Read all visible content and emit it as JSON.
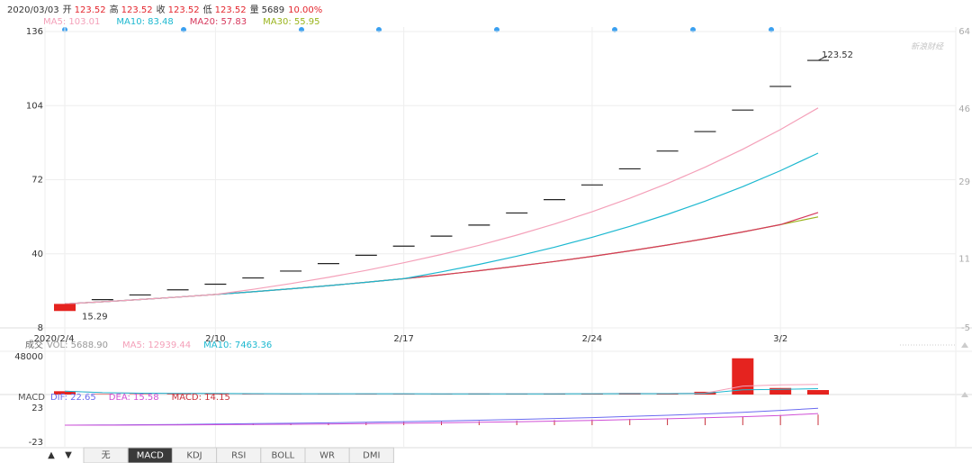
{
  "header": {
    "date": "2020/03/03",
    "items": [
      {
        "label": "开",
        "value": "123.52",
        "color": "#e4262e"
      },
      {
        "label": "高",
        "value": "123.52",
        "color": "#e4262e"
      },
      {
        "label": "收",
        "value": "123.52",
        "color": "#e4262e"
      },
      {
        "label": "低",
        "value": "123.52",
        "color": "#e4262e"
      },
      {
        "label": "量",
        "value": "5689",
        "color": "#333333"
      },
      {
        "value": "10.00%",
        "color": "#e4262e"
      }
    ]
  },
  "watermark": "新浪财经",
  "arrows": [
    "▲",
    "▼"
  ],
  "tabs": [
    "无",
    "MACD",
    "KDJ",
    "RSI",
    "BOLL",
    "WR",
    "DMI"
  ],
  "selected_tab": "MACD",
  "chart_data": [
    {
      "type": "candlestick",
      "categories": [
        "2020/2/4",
        null,
        null,
        null,
        "2/10",
        null,
        null,
        null,
        null,
        "2/17",
        null,
        null,
        null,
        null,
        "2/24",
        null,
        null,
        null,
        null,
        "3/2",
        null
      ],
      "open": [
        15.29,
        20.2,
        22.22,
        24.44,
        26.88,
        29.57,
        32.53,
        35.78,
        39.36,
        43.3,
        47.63,
        52.39,
        57.63,
        63.39,
        69.73,
        76.7,
        84.37,
        92.8,
        102.08,
        112.29,
        123.52
      ],
      "close": [
        18.36,
        20.2,
        22.22,
        24.44,
        26.88,
        29.57,
        32.53,
        35.78,
        39.36,
        43.3,
        47.63,
        52.39,
        57.63,
        63.39,
        69.73,
        76.7,
        84.37,
        92.8,
        102.08,
        112.29,
        123.52
      ],
      "up_color": "#e5231f",
      "flat_color": "#222222",
      "max_label": "123.52",
      "min_label": "15.29",
      "series": [
        {
          "name": "MA30: 55.95",
          "color": "#9ab41c",
          "values": [
            18.36,
            19.28,
            20.26,
            21.31,
            22.42,
            23.61,
            24.89,
            26.25,
            27.7,
            29.26,
            30.93,
            32.72,
            34.64,
            36.69,
            38.89,
            41.26,
            43.79,
            46.52,
            49.44,
            52.58,
            55.95
          ]
        },
        {
          "name": "MA20: 57.83",
          "color": "#d6385c",
          "values": [
            18.36,
            19.28,
            20.26,
            21.31,
            22.42,
            23.61,
            24.89,
            26.25,
            27.7,
            29.26,
            30.93,
            32.72,
            34.64,
            36.69,
            38.89,
            41.26,
            43.79,
            46.52,
            49.44,
            52.58,
            57.83
          ]
        },
        {
          "name": "MA10: 83.48",
          "color": "#1cb8d0",
          "values": [
            18.36,
            19.28,
            20.26,
            21.31,
            22.42,
            23.61,
            24.89,
            26.25,
            27.7,
            29.26,
            32.19,
            35.41,
            38.95,
            42.85,
            47.13,
            51.84,
            57.03,
            62.73,
            69.0,
            75.9,
            83.48
          ]
        },
        {
          "name": "MA5: 103.01",
          "color": "#f4a0b9",
          "values": [
            18.36,
            19.28,
            20.26,
            21.31,
            22.42,
            24.66,
            27.13,
            29.84,
            32.82,
            36.11,
            39.72,
            43.69,
            48.06,
            52.87,
            58.15,
            63.97,
            70.36,
            77.4,
            85.14,
            93.65,
            103.01
          ]
        }
      ],
      "legend_order": [
        3,
        2,
        1,
        0
      ],
      "ylim": [
        8,
        136
      ],
      "yticks": [
        8,
        40,
        72,
        104,
        136
      ],
      "y2lim": [
        -5,
        64
      ],
      "y2ticks": [
        -5,
        11,
        29,
        46,
        64
      ],
      "grid": true
    },
    {
      "type": "volume",
      "title": "成交",
      "bars": {
        "name": "VOL: 5688.90",
        "color": "#e5231f",
        "values": [
          4200,
          600,
          500,
          700,
          600,
          800,
          700,
          900,
          800,
          1000,
          900,
          1500,
          1000,
          1200,
          1100,
          2000,
          1200,
          3500,
          46000,
          8300,
          5688.9
        ]
      },
      "series": [
        {
          "name": "MA5: 12939.44",
          "color": "#f4a0b9",
          "values": [
            4200,
            2400,
            1767,
            1500,
            1320,
            640,
            660,
            740,
            760,
            840,
            860,
            1020,
            1040,
            1120,
            1140,
            1360,
            1300,
            1800,
            10760,
            12200,
            12939.44
          ]
        },
        {
          "name": "MA10: 7463.36",
          "color": "#1cb8d0",
          "values": [
            4200,
            2400,
            1767,
            1500,
            1320,
            1100,
            1043,
            1025,
            1000,
            980,
            750,
            840,
            890,
            930,
            990,
            1100,
            1150,
            1410,
            5930,
            6660,
            7463.36
          ]
        }
      ],
      "ylim": [
        0,
        48000
      ],
      "yticks": [
        48000
      ]
    },
    {
      "type": "macd",
      "title": "MACD",
      "series": [
        {
          "name": "DIF: 22.65",
          "color": "#6a6af0",
          "values": [
            0,
            0.25,
            0.6,
            1.0,
            1.5,
            2.0,
            2.6,
            3.2,
            3.9,
            4.7,
            5.6,
            6.6,
            7.7,
            8.9,
            10.2,
            11.7,
            13.3,
            15.1,
            17.3,
            19.9,
            22.65
          ]
        },
        {
          "name": "DEA: 15.58",
          "color": "#d04fd6",
          "values": [
            0,
            0.05,
            0.16,
            0.33,
            0.56,
            0.85,
            1.2,
            1.6,
            2.06,
            2.59,
            3.19,
            3.87,
            4.64,
            5.49,
            6.43,
            7.48,
            8.64,
            9.93,
            11.4,
            13.1,
            15.58
          ]
        }
      ],
      "bars": {
        "name": "MACD: 14.15",
        "color": "#c8323c",
        "values": [
          0,
          0.4,
          0.88,
          1.34,
          1.88,
          2.3,
          2.8,
          3.2,
          3.68,
          4.22,
          4.82,
          5.46,
          6.12,
          6.82,
          7.54,
          8.44,
          9.32,
          10.34,
          11.8,
          13.6,
          14.15
        ]
      },
      "ylim": [
        -23,
        23
      ],
      "yticks": [
        -23,
        23
      ]
    }
  ]
}
